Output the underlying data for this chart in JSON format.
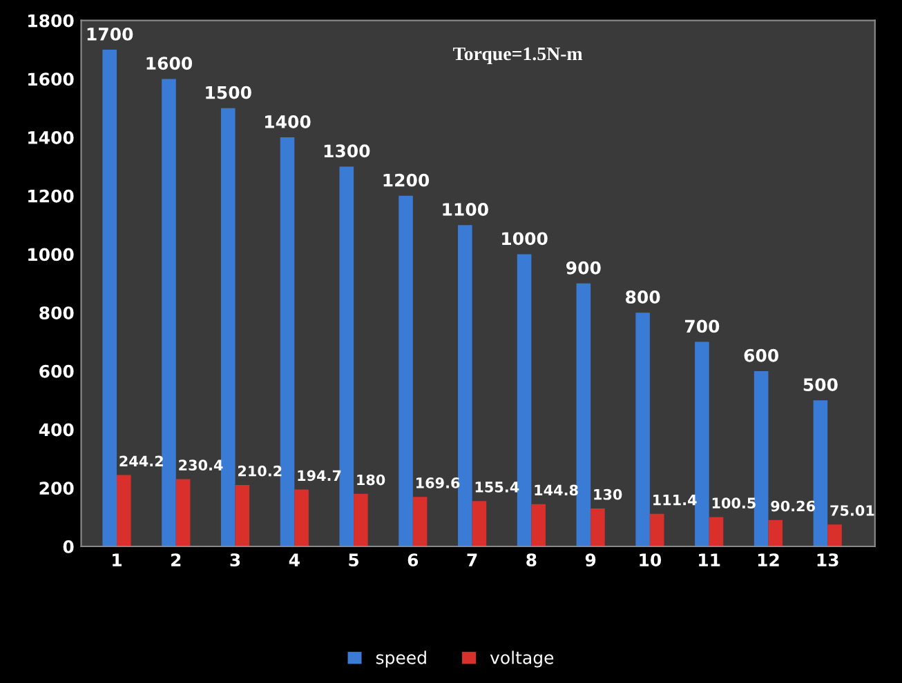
{
  "chart_data": {
    "type": "bar",
    "title": "Torque=1.5N-m",
    "categories": [
      "1",
      "2",
      "3",
      "4",
      "5",
      "6",
      "7",
      "8",
      "9",
      "10",
      "11",
      "12",
      "13"
    ],
    "series": [
      {
        "name": "speed",
        "color": "#3a7bd5",
        "values": [
          1700,
          1600,
          1500,
          1400,
          1300,
          1200,
          1100,
          1000,
          900,
          800,
          700,
          600,
          500
        ]
      },
      {
        "name": "voltage",
        "color": "#d9302c",
        "values": [
          244.2,
          230.4,
          210.2,
          194.7,
          180,
          169.6,
          155.4,
          144.8,
          130,
          111.4,
          100.5,
          90.26,
          75.01
        ]
      }
    ],
    "ylim": [
      0,
      1800
    ],
    "yticks": [
      0,
      200,
      400,
      600,
      800,
      1000,
      1200,
      1400,
      1600,
      1800
    ],
    "data_labels": true,
    "legend": "bottom",
    "grid": false
  }
}
